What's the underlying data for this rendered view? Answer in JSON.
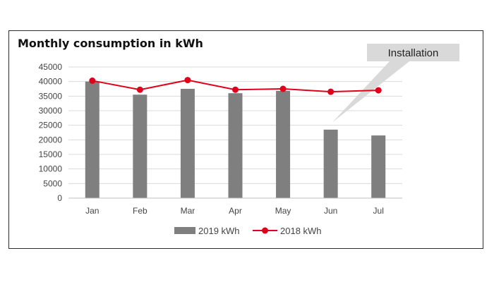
{
  "chart_data": {
    "type": "bar",
    "title": "Monthly consumption in kWh",
    "categories": [
      "Jan",
      "Feb",
      "Mar",
      "Apr",
      "May",
      "Jun",
      "Jul"
    ],
    "series": [
      {
        "name": "2019 kWh",
        "type": "bar",
        "color": "#7f7f7f",
        "values": [
          40000,
          35500,
          37500,
          36000,
          36800,
          23500,
          21500
        ]
      },
      {
        "name": "2018 kWh",
        "type": "line",
        "color": "#e0001b",
        "values": [
          40300,
          37200,
          40500,
          37200,
          37500,
          36500,
          37000
        ]
      }
    ],
    "ylim": [
      0,
      45000
    ],
    "yticks": [
      0,
      5000,
      10000,
      15000,
      20000,
      25000,
      30000,
      35000,
      40000,
      45000
    ],
    "grid": true,
    "legend_position": "bottom",
    "annotation": {
      "text": "Installation",
      "target_category": "Jun",
      "color": "#d9d9d9"
    }
  }
}
